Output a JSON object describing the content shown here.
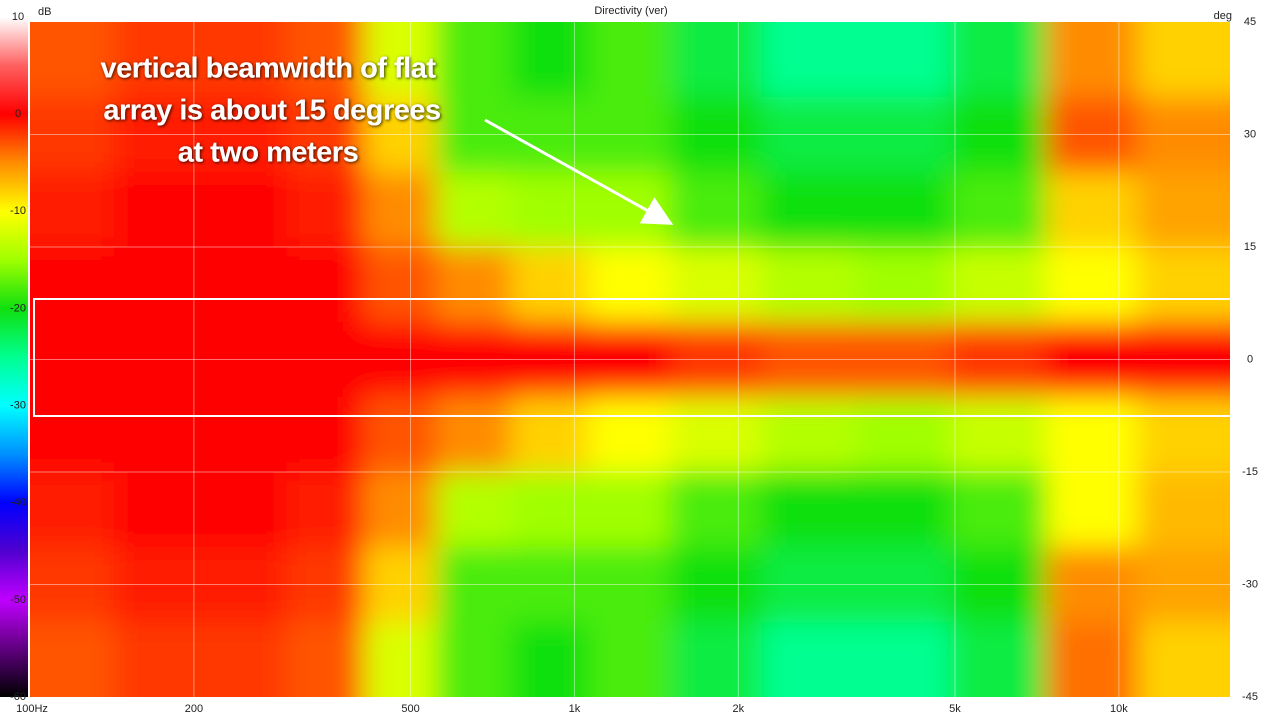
{
  "chart_data": {
    "type": "heatmap",
    "title": "Directivity (ver)",
    "colorbar_label": "dB",
    "y_label": "deg",
    "annotation": [
      "vertical beamwidth of flat",
      "array is about 15 degrees",
      "at two meters"
    ],
    "x": [
      120,
      170,
      250,
      350,
      480,
      650,
      900,
      1250,
      1800,
      2700,
      4000,
      6000,
      9000,
      13000
    ],
    "y": [
      40,
      30,
      20,
      10,
      0,
      -10,
      -20,
      -30,
      -40
    ],
    "values": [
      [
        -3,
        -2,
        -2,
        -3,
        -12,
        -18,
        -20,
        -18,
        -22,
        -25,
        -25,
        -22,
        -5,
        -8
      ],
      [
        -2,
        -1,
        -1,
        -2,
        -8,
        -18,
        -18,
        -18,
        -20,
        -22,
        -22,
        -20,
        -3,
        -5
      ],
      [
        -1,
        0,
        0,
        -1,
        -5,
        -14,
        -15,
        -15,
        -18,
        -20,
        -20,
        -18,
        -8,
        -6
      ],
      [
        0,
        0,
        0,
        0,
        -3,
        -5,
        -8,
        -10,
        -12,
        -14,
        -15,
        -13,
        -10,
        -8
      ],
      [
        0,
        0,
        0,
        0,
        0,
        0,
        0,
        0,
        -2,
        -3,
        -3,
        -2,
        0,
        0
      ],
      [
        0,
        0,
        0,
        0,
        -3,
        -5,
        -8,
        -10,
        -12,
        -14,
        -15,
        -13,
        -10,
        -8
      ],
      [
        -1,
        0,
        0,
        -1,
        -5,
        -14,
        -15,
        -15,
        -18,
        -20,
        -20,
        -18,
        -10,
        -7
      ],
      [
        -2,
        -1,
        -1,
        -2,
        -8,
        -18,
        -18,
        -18,
        -20,
        -22,
        -22,
        -20,
        -5,
        -6
      ],
      [
        -3,
        -2,
        -2,
        -3,
        -12,
        -18,
        -20,
        -18,
        -22,
        -25,
        -25,
        -22,
        -4,
        -8
      ]
    ],
    "xlim": [
      100,
      16000
    ],
    "log_x": true,
    "xticks": [
      {
        "value": 100,
        "label": "100Hz"
      },
      200,
      500,
      {
        "value": 1000,
        "label": "1k"
      },
      {
        "value": 2000,
        "label": "2k"
      },
      {
        "value": 5000,
        "label": "5k"
      },
      {
        "value": 10000,
        "label": "10k"
      }
    ],
    "ylim": [
      -45,
      45
    ],
    "yticks": [
      45,
      30,
      15,
      0,
      -15,
      -30,
      -45
    ],
    "clim": [
      -60,
      10
    ],
    "cticks": [
      10,
      0,
      -10,
      -20,
      -30,
      -40,
      -50,
      -60
    ],
    "colorscale": [
      [
        10,
        "#ffffff"
      ],
      [
        5,
        "#ff6060"
      ],
      [
        0,
        "#ff0000"
      ],
      [
        -5,
        "#ff8c00"
      ],
      [
        -10,
        "#ffff00"
      ],
      [
        -15,
        "#a0ff00"
      ],
      [
        -20,
        "#10e010"
      ],
      [
        -25,
        "#00ff90"
      ],
      [
        -30,
        "#00ffff"
      ],
      [
        -35,
        "#0090ff"
      ],
      [
        -40,
        "#0000ff"
      ],
      [
        -45,
        "#5000d0"
      ],
      [
        -50,
        "#c000ff"
      ],
      [
        -55,
        "#600080"
      ],
      [
        -60,
        "#000000"
      ]
    ],
    "grid": true
  }
}
